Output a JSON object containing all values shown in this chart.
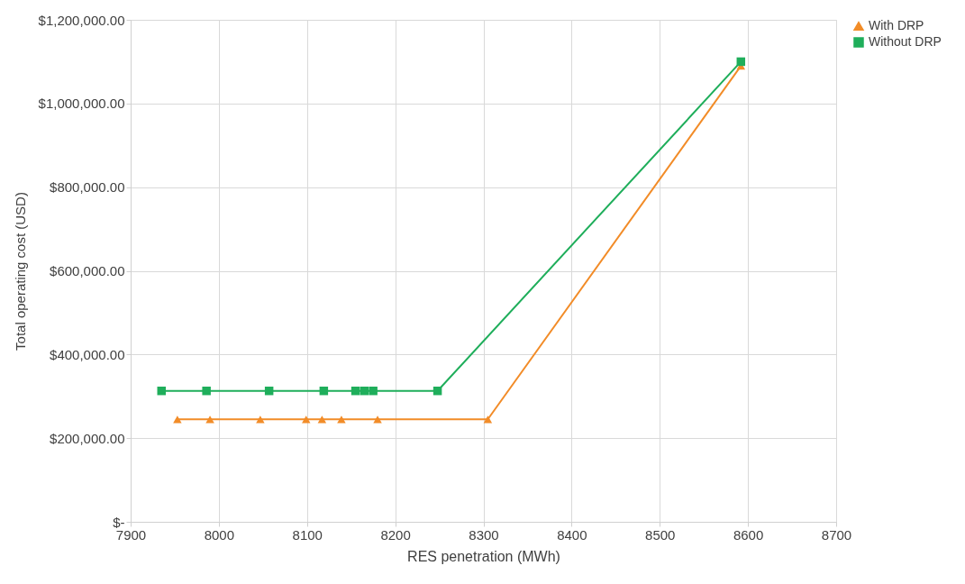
{
  "chart_data": {
    "type": "line",
    "xlabel": "RES penetration (MWh)",
    "ylabel": "Total operating cost (USD)",
    "xlim": [
      7900,
      8700
    ],
    "xticks": [
      7900,
      8000,
      8100,
      8200,
      8300,
      8400,
      8500,
      8600,
      8700
    ],
    "ylim": [
      0,
      1200000
    ],
    "yticks": [
      {
        "value": 0,
        "label": "$-"
      },
      {
        "value": 200000,
        "label": "$200,000.00"
      },
      {
        "value": 400000,
        "label": "$400,000.00"
      },
      {
        "value": 600000,
        "label": "$600,000.00"
      },
      {
        "value": 800000,
        "label": "$800,000.00"
      },
      {
        "value": 1000000,
        "label": "$1,000,000.00"
      },
      {
        "value": 1200000,
        "label": "$1,200,000.00"
      }
    ],
    "grid": true,
    "legend": "right",
    "line_style": "solid",
    "series": [
      {
        "name": "With DRP",
        "color": "#f28c28",
        "marker": "triangle",
        "x": [
          7953,
          7990,
          8047,
          8099,
          8117,
          8139,
          8180,
          8305,
          8592
        ],
        "values": [
          245000,
          245000,
          245000,
          245000,
          245000,
          245000,
          245000,
          245000,
          1090000
        ]
      },
      {
        "name": "Without DRP",
        "color": "#1fae5b",
        "marker": "square",
        "x": [
          7935,
          7986,
          8057,
          8119,
          8155,
          8165,
          8175,
          8248,
          8592
        ],
        "values": [
          313000,
          313000,
          313000,
          313000,
          313000,
          313000,
          313000,
          313000,
          1100000
        ]
      }
    ]
  }
}
